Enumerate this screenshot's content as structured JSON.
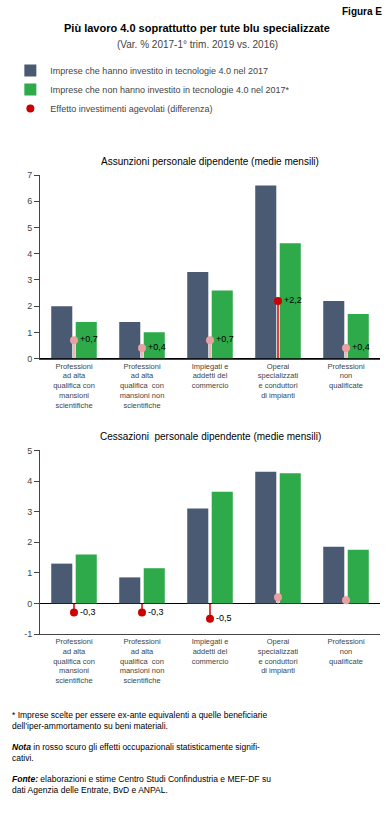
{
  "title": "Più lavoro 4.0 soprattutto per tute blu specializzate",
  "subtitle": "(Var. % 2017-1° trim. 2019 vs. 2016)",
  "annotations": [
    "Figura E"
  ],
  "legend": "top left",
  "footnotes": [
    {
      "text": "* Imprese scelte per essere ex-ante equivalenti a quelle beneficiarie\ndell’iper-ammortamento su beni materiali."
    },
    {
      "label": "Nota",
      "text": "in rosso scuro gli effetti occupazionali statisticamente signifi-\ncativi."
    },
    {
      "label": "Fonte:",
      "text": "elaborazioni e stime Centro Studi Confindustria e MEF-DF su\ndati Agenzia delle Entrate, BvD e ANPAL."
    }
  ],
  "chart_data": [
    {
      "type": "bar",
      "title": "Assunzioni personale dipendente (medie mensili)",
      "categories": [
        "Professioni\nad alta\nqualifica con\nmansioni\nscientifiche",
        "Professioni\nad alta\nqualifica  con\nmansioni non\nscientifiche",
        "Impiegati e\naddetti del\ncommercio",
        "Operai\nspecializzati\ne conduttori\ndi impianti",
        "Professioni\nnon\nqualificate"
      ],
      "series": [
        {
          "name": "Imprese che hanno investito in tecnologie 4.0 nel 2017",
          "type": "bar",
          "color": "#4a5a72",
          "values": [
            2.0,
            1.4,
            3.3,
            6.6,
            2.2
          ]
        },
        {
          "name": "Imprese che non hanno investito in tecnologie 4.0 nel 2017*",
          "type": "bar",
          "color": "#2eaa4a",
          "values": [
            1.4,
            1.0,
            2.6,
            4.4,
            1.7
          ]
        },
        {
          "name": "Effetto investimenti agevolati (differenza)",
          "type": "scatter",
          "marker": "circle",
          "line_style": "stem",
          "data_labels": true,
          "colors": [
            "#e8a0a0",
            "#e8a0a0",
            "#e8a0a0",
            "#cc0000",
            "#e8a0a0"
          ],
          "values": [
            0.7,
            0.4,
            0.7,
            2.2,
            0.4
          ],
          "value_labels": [
            "+0,7",
            "+0,4",
            "+0,7",
            "+2,2",
            "+0,4"
          ]
        }
      ],
      "ylim": [
        0,
        7
      ],
      "yticks": [
        0,
        1,
        2,
        3,
        4,
        5,
        6,
        7
      ],
      "grid": false
    },
    {
      "type": "bar",
      "title": "Cessazioni  personale dipendente (medie mensili)",
      "categories": [
        "Professioni\nad alta\nqualifica con\nmansioni\nscientifiche",
        "Professioni\nad alta\nqualifica  con\nmansioni non\nscientifiche",
        "Impiegati e\naddetti del\ncommercio",
        "Operai\nspecializzati\ne conduttori\ndi impianti",
        "Professioni\nnon\nqualificate"
      ],
      "series": [
        {
          "name": "Imprese che hanno investito in tecnologie 4.0 nel 2017",
          "type": "bar",
          "color": "#4a5a72",
          "values": [
            1.3,
            0.85,
            3.1,
            4.3,
            1.85
          ]
        },
        {
          "name": "Imprese che non hanno investito in tecnologie 4.0 nel 2017*",
          "type": "bar",
          "color": "#2eaa4a",
          "values": [
            1.6,
            1.15,
            3.65,
            4.25,
            1.75
          ]
        },
        {
          "name": "Effetto investimenti agevolati (differenza)",
          "type": "scatter",
          "marker": "circle",
          "line_style": "stem",
          "data_labels": true,
          "colors": [
            "#cc0000",
            "#cc0000",
            "#cc0000",
            "#e8a0a0",
            "#e8a0a0"
          ],
          "values": [
            -0.3,
            -0.3,
            -0.5,
            0.2,
            0.1
          ],
          "value_labels": [
            "-0,3",
            "-0,3",
            "-0,5",
            null,
            null
          ]
        }
      ],
      "ylim": [
        -1,
        5
      ],
      "yticks": [
        -1,
        0,
        1,
        2,
        3,
        4,
        5
      ],
      "grid": false
    }
  ]
}
